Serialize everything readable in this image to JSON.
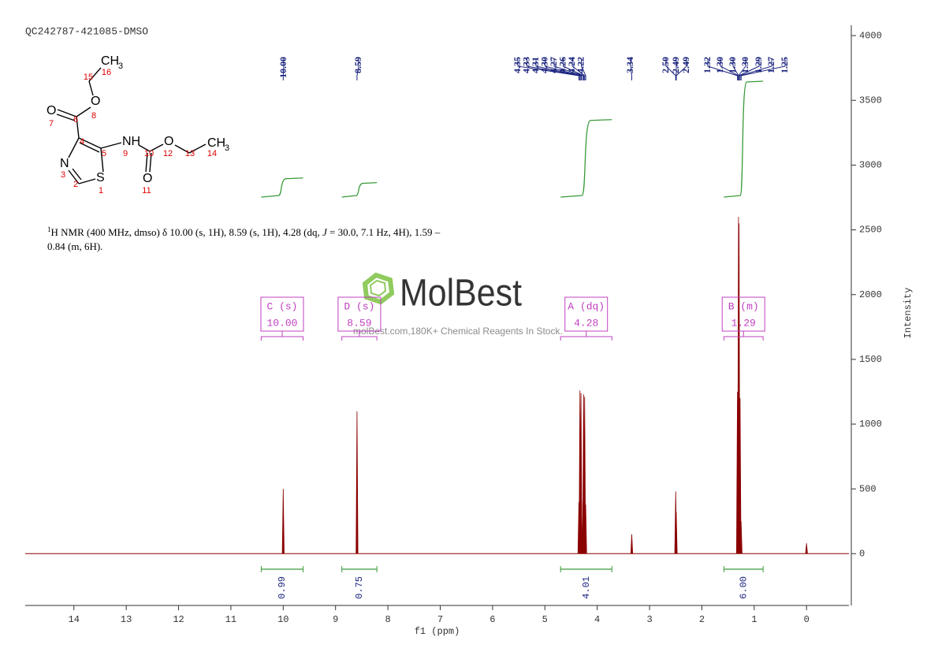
{
  "chart_data": {
    "type": "nmr",
    "title": "QC242787-421085-DMSO",
    "x_label": "f1 (ppm)",
    "y_label": "Intensity",
    "xlim": [
      14.93,
      -0.81
    ],
    "xticks": [
      14,
      13,
      12,
      11,
      10,
      9,
      8,
      7,
      6,
      5,
      4,
      3,
      2,
      1,
      0
    ],
    "ylim": [
      -400,
      4080
    ],
    "yticks": [
      0,
      500,
      1000,
      1500,
      2000,
      2500,
      3000,
      3500,
      4000
    ],
    "color": "#8b0000",
    "x": [
      10.0,
      8.59,
      4.35,
      4.33,
      4.31,
      4.3,
      4.27,
      4.26,
      4.24,
      4.22,
      3.34,
      2.5,
      2.49,
      1.32,
      1.3,
      1.29,
      1.27,
      1.25,
      0.0
    ],
    "values": [
      500,
      1100,
      400,
      1260,
      1240,
      420,
      400,
      1230,
      1210,
      380,
      150,
      480,
      320,
      1250,
      2600,
      2550,
      1200,
      250,
      80
    ],
    "peak_labels": [
      {
        "value": 10,
        "label": "10.00"
      },
      8.59,
      4.35,
      4.33,
      4.31,
      {
        "value": 4.3,
        "label": "4.30"
      },
      4.27,
      4.26,
      4.24,
      4.22,
      3.34,
      {
        "value": 2.5,
        "label": "2.50"
      },
      2.49,
      2.49,
      1.32,
      {
        "value": 1.3,
        "label": "1.30"
      },
      {
        "value": 1.3,
        "label": "1.30"
      },
      {
        "value": 1.3,
        "label": "1.30"
      },
      1.29,
      1.27,
      1.25
    ],
    "integrals": [
      {
        "range": [
          10.42,
          9.62
        ],
        "value": 0.99
      },
      {
        "range": [
          8.88,
          8.21
        ],
        "value": 0.75
      },
      {
        "range": [
          4.7,
          3.72
        ],
        "value": 4.01
      },
      {
        "range": [
          1.58,
          0.83
        ],
        "value": 6,
        "label": "6.00"
      }
    ],
    "multiplets": [
      {
        "label": "C (s)",
        "shift": "10.00",
        "range": [
          10.42,
          9.62
        ]
      },
      {
        "label": "D (s)",
        "shift": "8.59",
        "range": [
          8.88,
          8.21
        ]
      },
      {
        "label": "A (dq)",
        "shift": "4.28",
        "range": [
          4.7,
          3.72
        ]
      },
      {
        "label": "B (m)",
        "shift": "1.29",
        "range": [
          1.58,
          0.83
        ]
      }
    ],
    "annotation": [
      "1",
      "H NMR (400 MHz, dmso) δ 10.00 (s, 1H), 8.59 (s, 1H), 4.28 (dq, ",
      "J",
      " = 30.0, 7.1 Hz, 4H), 1.59 –",
      "0.84 (m, 6H)."
    ],
    "watermark": [
      "MolBest",
      "molBest.com,180K+ Chemical Reagents In Stock."
    ]
  },
  "structure": {
    "atoms": [
      "CH",
      "3",
      "O",
      "O",
      "NH",
      "O",
      "CH",
      "3",
      "O",
      "N",
      "S"
    ],
    "atom_numbers": [
      "16",
      "15",
      "8",
      "7",
      "6",
      "4",
      "5",
      "9",
      "10",
      "12",
      "13",
      "14",
      "11",
      "3",
      "2",
      "1"
    ]
  }
}
